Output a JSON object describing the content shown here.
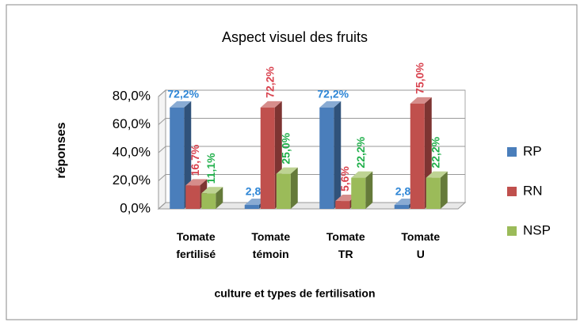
{
  "chart_data": {
    "type": "bar3d",
    "title": "Aspect visuel des fruits",
    "y_label": "réponses",
    "x_label": "culture et types de fertilisation",
    "categories": [
      "Tomate fertilisé",
      "Tomate témoin",
      "Tomate TR",
      "Tomate U"
    ],
    "series": [
      {
        "name": "RP",
        "color": "#4a7ebb",
        "label_color": "#2e86d6",
        "values": [
          72.2,
          2.8,
          72.2,
          2.8
        ],
        "value_labels": [
          "72,2%",
          "2,8%",
          "72,2%",
          "2,8%"
        ]
      },
      {
        "name": "RN",
        "color": "#c0504d",
        "label_color": "#d9434f",
        "values": [
          16.7,
          72.2,
          5.6,
          75.0
        ],
        "value_labels": [
          "16,7%",
          "72,2%",
          "5,6%",
          "75,0%"
        ]
      },
      {
        "name": "NSP",
        "color": "#9bbb59",
        "label_color": "#22b04c",
        "values": [
          11.1,
          25.0,
          22.2,
          22.2
        ],
        "value_labels": [
          "11,1%",
          "25,0%",
          "22,2%",
          "22,2%"
        ]
      }
    ],
    "ylim": [
      0,
      80
    ],
    "yticks": [
      {
        "value": 0,
        "label": "0,0%"
      },
      {
        "value": 20,
        "label": "20,0%"
      },
      {
        "value": 40,
        "label": "40,0%"
      },
      {
        "value": 60,
        "label": "60,0%"
      },
      {
        "value": 80,
        "label": "80,0%"
      }
    ],
    "grid": true,
    "legend": "right"
  }
}
